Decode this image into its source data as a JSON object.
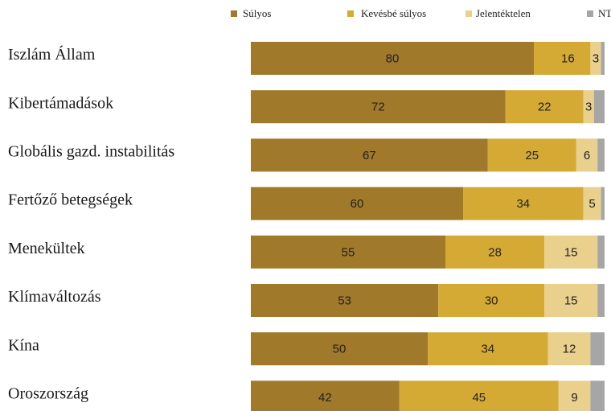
{
  "chart_data": {
    "type": "bar",
    "orientation": "horizontal",
    "stacked": true,
    "categories": [
      "Iszlám Állam",
      "Kibertámadások",
      "Globális gazd. instabilitás",
      "Fertőző betegségek",
      "Menekültek",
      "Klímaváltozás",
      "Kína",
      "Oroszország"
    ],
    "series": [
      {
        "name": "Súlyos",
        "color": "#a0792a",
        "values": [
          80,
          72,
          67,
          60,
          55,
          53,
          50,
          42
        ]
      },
      {
        "name": "Kevésbé súlyos",
        "color": "#d4a934",
        "values": [
          16,
          22,
          25,
          34,
          28,
          30,
          34,
          45
        ]
      },
      {
        "name": "Jelentéktelen",
        "color": "#ead08d",
        "values": [
          3,
          3,
          6,
          5,
          15,
          15,
          12,
          9
        ]
      },
      {
        "name": "NT",
        "color": "#a6a6a6",
        "values": [
          1,
          3,
          2,
          1,
          2,
          2,
          4,
          4
        ]
      }
    ],
    "labels_shown": [
      [
        "80",
        "16",
        "3",
        ""
      ],
      [
        "72",
        "22",
        "3",
        ""
      ],
      [
        "67",
        "25",
        "6",
        ""
      ],
      [
        "60",
        "34",
        "5",
        ""
      ],
      [
        "55",
        "28",
        "15",
        ""
      ],
      [
        "53",
        "30",
        "15",
        ""
      ],
      [
        "50",
        "34",
        "12",
        ""
      ],
      [
        "42",
        "45",
        "9",
        ""
      ]
    ],
    "xlim": [
      0,
      100
    ],
    "legend_position": "top",
    "grid": false,
    "title": "",
    "xlabel": "",
    "ylabel": ""
  }
}
